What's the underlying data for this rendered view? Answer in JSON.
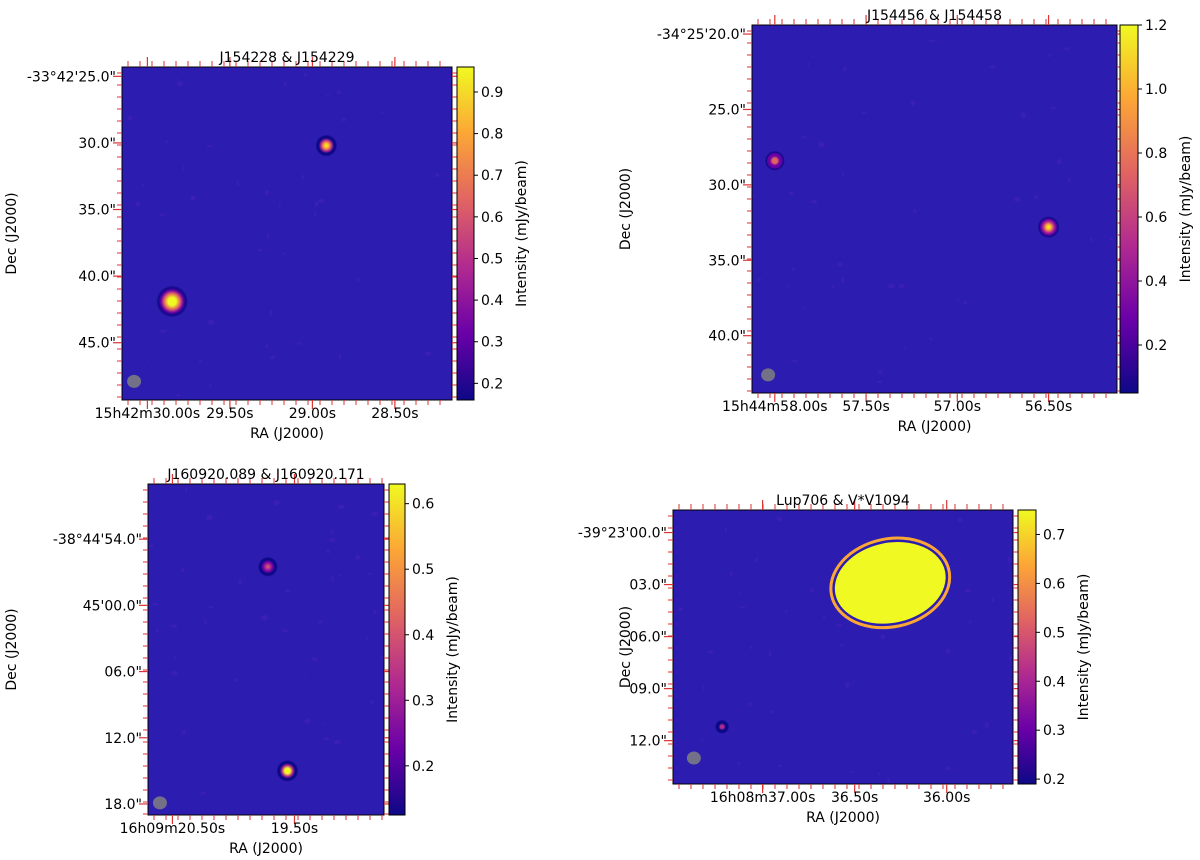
{
  "chart_data": [
    {
      "type": "heatmap",
      "title": "J154228 & J154229",
      "xlabel": "RA (J2000)",
      "ylabel": "Dec (J2000)",
      "colorbar": {
        "label": "Intensity (mJy/beam)",
        "range": [
          0.16,
          0.96
        ],
        "ticks": [
          0.2,
          0.3,
          0.4,
          0.5,
          0.6,
          0.7,
          0.8,
          0.9
        ],
        "tick_labels": [
          "0.2",
          "0.3",
          "0.4",
          "0.5",
          "0.6",
          "0.7",
          "0.8",
          "0.9"
        ],
        "colormap": [
          "#0d0887",
          "#6a00a8",
          "#b12a90",
          "#e16462",
          "#fca636",
          "#f0f921"
        ]
      },
      "background_color": "#2c1cb0",
      "xlim_arcsec": [
        -2.0,
        24.0
      ],
      "ylim_arcsec": [
        -49.3,
        -24.3
      ],
      "x_ticks": [
        0,
        6.5,
        13.0,
        19.5
      ],
      "x_tick_labels": [
        "15h42m30.00s",
        "29.50s",
        "29.00s",
        "28.50s"
      ],
      "y_ticks": [
        -25.0,
        -30.0,
        -35.0,
        -40.0,
        -45.0
      ],
      "y_tick_labels": [
        "-33°42'25.0\"",
        "30.0\"",
        "35.0\"",
        "40.0\"",
        "45.0\""
      ],
      "sources": [
        {
          "x": 14.1,
          "y": -30.2,
          "peak": 0.9,
          "size": 0.6
        },
        {
          "x": 1.95,
          "y": -41.9,
          "peak": 1.2,
          "size": 1.1
        }
      ],
      "beam": {
        "x": -1.05,
        "y": -47.9
      }
    },
    {
      "type": "heatmap",
      "title": "J154456 & J154458",
      "xlabel": "RA (J2000)",
      "ylabel": "Dec (J2000)",
      "colorbar": {
        "label": "Intensity (mJy/beam)",
        "range": [
          0.05,
          1.2
        ],
        "ticks": [
          0.2,
          0.4,
          0.6,
          0.8,
          1.0,
          1.2
        ],
        "tick_labels": [
          "0.2",
          "0.4",
          "0.6",
          "0.8",
          "1.0",
          "1.2"
        ],
        "colormap": [
          "#0d0887",
          "#6a00a8",
          "#b12a90",
          "#e16462",
          "#fca636",
          "#f0f921"
        ]
      },
      "background_color": "#2c1cb0",
      "xlim_arcsec": [
        -1.7,
        25.5
      ],
      "ylim_arcsec": [
        -43.8,
        -19.4
      ],
      "x_ticks": [
        0,
        6.8,
        13.6,
        20.4
      ],
      "x_tick_labels": [
        "15h44m58.00s",
        "57.50s",
        "57.00s",
        "56.50s"
      ],
      "y_ticks": [
        -20.0,
        -25.0,
        -30.0,
        -35.0,
        -40.0
      ],
      "y_tick_labels": [
        "-34°25'20.0\"",
        "25.0\"",
        "30.0\"",
        "35.0\"",
        "40.0\""
      ],
      "sources": [
        {
          "x": 0.0,
          "y": -28.4,
          "peak": 0.8,
          "size": 0.5
        },
        {
          "x": 20.4,
          "y": -32.8,
          "peak": 1.1,
          "size": 0.6
        }
      ],
      "beam": {
        "x": -0.5,
        "y": -42.6
      }
    },
    {
      "type": "heatmap",
      "title": "J160920.089 & J160920.171",
      "xlabel": "RA (J2000)",
      "ylabel": "Dec (J2000)",
      "colorbar": {
        "label": "Intensity (mJy/beam)",
        "range": [
          0.125,
          0.63
        ],
        "ticks": [
          0.2,
          0.3,
          0.4,
          0.5,
          0.6
        ],
        "tick_labels": [
          "0.2",
          "0.3",
          "0.4",
          "0.5",
          "0.6"
        ],
        "colormap": [
          "#0d0887",
          "#6a00a8",
          "#b12a90",
          "#e16462",
          "#fca636",
          "#f0f921"
        ]
      },
      "background_color": "#2c1cb0",
      "xlim_arcsec": [
        -2.25,
        19.5
      ],
      "ylim_arcsec": [
        -79.0,
        -49.0
      ],
      "x_ticks": [
        0,
        11.25
      ],
      "x_tick_labels": [
        "16h09m20.50s",
        "19.50s"
      ],
      "y_ticks": [
        -54.0,
        -60.0,
        -66.0,
        -72.0,
        -78.0
      ],
      "y_tick_labels": [
        "-38°44'54.0\"",
        "45'00.0\"",
        "06.0\"",
        "12.0\"",
        "18.0\""
      ],
      "sources": [
        {
          "x": 8.8,
          "y": -56.5,
          "peak": 0.42,
          "size": 0.5
        },
        {
          "x": 10.6,
          "y": -75.0,
          "peak": 0.72,
          "size": 0.6
        }
      ],
      "beam": {
        "x": -1.15,
        "y": -77.9
      }
    },
    {
      "type": "heatmap",
      "title": "Lup706 & V*V1094",
      "xlabel": "RA (J2000)",
      "ylabel": "Dec (J2000)",
      "colorbar": {
        "label": "Intensity (mJy/beam)",
        "range": [
          0.19,
          0.75
        ],
        "ticks": [
          0.2,
          0.3,
          0.4,
          0.5,
          0.6,
          0.7
        ],
        "tick_labels": [
          "0.2",
          "0.3",
          "0.4",
          "0.5",
          "0.6",
          "0.7"
        ],
        "colormap": [
          "#0d0887",
          "#6a00a8",
          "#b12a90",
          "#e16462",
          "#fca636",
          "#f0f921"
        ]
      },
      "background_color": "#2c1cb0",
      "xlim_arcsec": [
        -3.65,
        10.2
      ],
      "ylim_arcsec": [
        -14.5,
        1.3
      ],
      "x_ticks": [
        0,
        3.75,
        7.5
      ],
      "x_tick_labels": [
        "16h08m37.00s",
        "36.50s",
        "36.00s"
      ],
      "y_ticks": [
        0.0,
        -3.0,
        -6.0,
        -9.0,
        -12.0
      ],
      "y_tick_labels": [
        "-39°23'00.0\"",
        "03.0\"",
        "06.0\"",
        "09.0\"",
        "12.0\""
      ],
      "sources": [
        {
          "x": -1.65,
          "y": -11.2,
          "peak": 0.45,
          "size": 0.2
        },
        {
          "x": 5.2,
          "y": -2.9,
          "peak": 3.0,
          "size": 1.6,
          "extended": true
        }
      ],
      "beam": {
        "x": -2.8,
        "y": -13.0
      }
    }
  ]
}
